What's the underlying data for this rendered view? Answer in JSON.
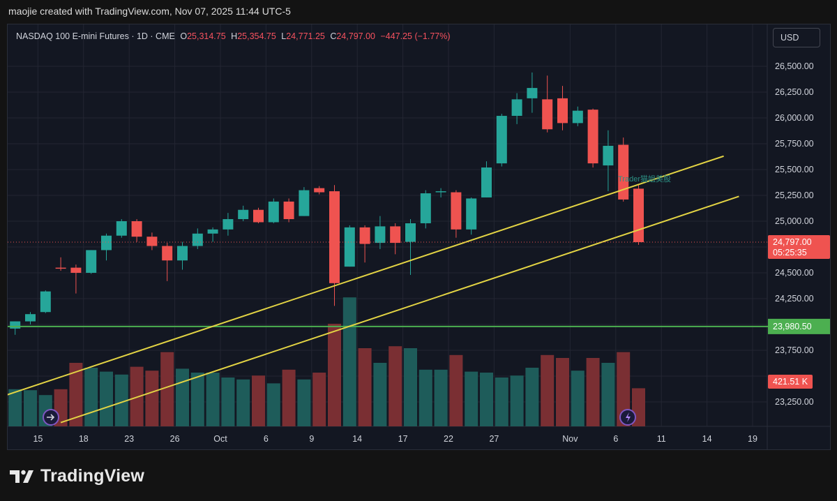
{
  "header": {
    "attribution": "maojie created with TradingView.com, Nov 07, 2025 11:44 UTC-5"
  },
  "legend": {
    "symbol": "NASDAQ 100 E-mini Futures · 1D · CME",
    "o_label": "O",
    "o_value": "25,314.75",
    "h_label": "H",
    "h_value": "25,354.75",
    "l_label": "L",
    "l_value": "24,771.25",
    "c_label": "C",
    "c_value": "24,797.00",
    "change": "−447.25 (−1.77%)"
  },
  "currency": "USD",
  "footer": {
    "brand": "TradingView"
  },
  "colors": {
    "up": "#26a69a",
    "down": "#ef5350",
    "vol_up": "#1e5c5a",
    "vol_down": "#7a2f33",
    "trendline": "#e3d444",
    "support": "#4caf50"
  },
  "chart_data": {
    "type": "candlestick",
    "title": "NASDAQ 100 E-mini Futures · 1D · CME",
    "ylim": [
      23050,
      26800
    ],
    "y_ticks": [
      "26,500.00",
      "26,250.00",
      "26,000.00",
      "25,750.00",
      "25,500.00",
      "25,250.00",
      "25,000.00",
      "24,500.00",
      "24,250.00",
      "23,750.00",
      "23,250.00"
    ],
    "y_tick_values": [
      26500,
      26250,
      26000,
      25750,
      25500,
      25250,
      25000,
      24500,
      24250,
      23750,
      23250
    ],
    "x_ticks": [
      {
        "label": "15",
        "bar": 1.5
      },
      {
        "label": "18",
        "bar": 4.5
      },
      {
        "label": "23",
        "bar": 7.5
      },
      {
        "label": "26",
        "bar": 10.5
      },
      {
        "label": "Oct",
        "bar": 13.5
      },
      {
        "label": "6",
        "bar": 16.5
      },
      {
        "label": "9",
        "bar": 19.5
      },
      {
        "label": "14",
        "bar": 22.5
      },
      {
        "label": "17",
        "bar": 25.5
      },
      {
        "label": "22",
        "bar": 28.5
      },
      {
        "label": "27",
        "bar": 31.5
      },
      {
        "label": "Nov",
        "bar": 36.5
      },
      {
        "label": "6",
        "bar": 39.5
      },
      {
        "label": "11",
        "bar": 42.5
      },
      {
        "label": "14",
        "bar": 45.5
      },
      {
        "label": "19",
        "bar": 48.5
      }
    ],
    "candles": [
      {
        "o": 23960,
        "h": 24030,
        "l": 23900,
        "c": 24030,
        "v": 0.38
      },
      {
        "o": 24030,
        "h": 24120,
        "l": 24000,
        "c": 24100,
        "v": 0.37
      },
      {
        "o": 24120,
        "h": 24330,
        "l": 24110,
        "c": 24320,
        "v": 0.32
      },
      {
        "o": 24550,
        "h": 24650,
        "l": 24520,
        "c": 24540,
        "v": 0.38
      },
      {
        "o": 24550,
        "h": 24580,
        "l": 24300,
        "c": 24500,
        "v": 0.65
      },
      {
        "o": 24500,
        "h": 24720,
        "l": 24490,
        "c": 24720,
        "v": 0.6
      },
      {
        "o": 24720,
        "h": 24880,
        "l": 24620,
        "c": 24860,
        "v": 0.56
      },
      {
        "o": 24860,
        "h": 25020,
        "l": 24840,
        "c": 25000,
        "v": 0.53
      },
      {
        "o": 25000,
        "h": 25020,
        "l": 24800,
        "c": 24850,
        "v": 0.61
      },
      {
        "o": 24850,
        "h": 24890,
        "l": 24720,
        "c": 24760,
        "v": 0.57
      },
      {
        "o": 24760,
        "h": 24790,
        "l": 24420,
        "c": 24620,
        "v": 0.76
      },
      {
        "o": 24620,
        "h": 24800,
        "l": 24530,
        "c": 24760,
        "v": 0.59
      },
      {
        "o": 24760,
        "h": 24930,
        "l": 24730,
        "c": 24880,
        "v": 0.55
      },
      {
        "o": 24880,
        "h": 24940,
        "l": 24800,
        "c": 24920,
        "v": 0.55
      },
      {
        "o": 24920,
        "h": 25080,
        "l": 24860,
        "c": 25020,
        "v": 0.5
      },
      {
        "o": 25020,
        "h": 25150,
        "l": 25000,
        "c": 25110,
        "v": 0.48
      },
      {
        "o": 25110,
        "h": 25130,
        "l": 24980,
        "c": 24990,
        "v": 0.52
      },
      {
        "o": 24990,
        "h": 25220,
        "l": 24980,
        "c": 25190,
        "v": 0.44
      },
      {
        "o": 25190,
        "h": 25220,
        "l": 24990,
        "c": 25020,
        "v": 0.58
      },
      {
        "o": 25050,
        "h": 25330,
        "l": 25050,
        "c": 25300,
        "v": 0.48
      },
      {
        "o": 25320,
        "h": 25340,
        "l": 25260,
        "c": 25280,
        "v": 0.55
      },
      {
        "o": 25290,
        "h": 25350,
        "l": 24180,
        "c": 24400,
        "v": 1.05
      },
      {
        "o": 24560,
        "h": 24960,
        "l": 24560,
        "c": 24940,
        "v": 1.32
      },
      {
        "o": 24940,
        "h": 24960,
        "l": 24600,
        "c": 24780,
        "v": 0.8
      },
      {
        "o": 24790,
        "h": 25050,
        "l": 24730,
        "c": 24950,
        "v": 0.65
      },
      {
        "o": 24950,
        "h": 24980,
        "l": 24680,
        "c": 24790,
        "v": 0.82
      },
      {
        "o": 24800,
        "h": 25020,
        "l": 24480,
        "c": 24980,
        "v": 0.8
      },
      {
        "o": 24980,
        "h": 25300,
        "l": 24930,
        "c": 25270,
        "v": 0.58
      },
      {
        "o": 25280,
        "h": 25320,
        "l": 25230,
        "c": 25290,
        "v": 0.58
      },
      {
        "o": 25280,
        "h": 25300,
        "l": 24840,
        "c": 24920,
        "v": 0.73
      },
      {
        "o": 24920,
        "h": 25230,
        "l": 24870,
        "c": 25220,
        "v": 0.56
      },
      {
        "o": 25230,
        "h": 25580,
        "l": 25230,
        "c": 25520,
        "v": 0.55
      },
      {
        "o": 25560,
        "h": 26040,
        "l": 25530,
        "c": 26020,
        "v": 0.5
      },
      {
        "o": 26020,
        "h": 26240,
        "l": 25940,
        "c": 26180,
        "v": 0.52
      },
      {
        "o": 26190,
        "h": 26440,
        "l": 26050,
        "c": 26290,
        "v": 0.6
      },
      {
        "o": 26180,
        "h": 26410,
        "l": 25860,
        "c": 25890,
        "v": 0.73
      },
      {
        "o": 26190,
        "h": 26310,
        "l": 25880,
        "c": 25950,
        "v": 0.7
      },
      {
        "o": 25950,
        "h": 26110,
        "l": 25920,
        "c": 26070,
        "v": 0.57
      },
      {
        "o": 26080,
        "h": 26090,
        "l": 25520,
        "c": 25560,
        "v": 0.7
      },
      {
        "o": 25540,
        "h": 25880,
        "l": 25290,
        "c": 25730,
        "v": 0.65
      },
      {
        "o": 25740,
        "h": 25810,
        "l": 25190,
        "c": 25210,
        "v": 0.76
      },
      {
        "o": 25315,
        "h": 25355,
        "l": 24771,
        "c": 24797,
        "v": 0.39
      }
    ],
    "horizontal_lines": [
      {
        "value": 23980.5,
        "label": "23,980.50",
        "color": "#4caf50"
      }
    ],
    "trendlines": [
      {
        "from": {
          "bar": -0.5,
          "value": 23320
        },
        "to": {
          "bar": 46.6,
          "value": 25630
        }
      },
      {
        "from": {
          "bar": 3,
          "value": 23050
        },
        "to": {
          "bar": 47.6,
          "value": 25240
        }
      }
    ],
    "price_tag": {
      "value": 24797,
      "price": "24,797.00",
      "countdown": "05:25:35"
    },
    "volume_tag": {
      "label": "421.51 K"
    },
    "watermark": "Trader猫姐美股"
  }
}
